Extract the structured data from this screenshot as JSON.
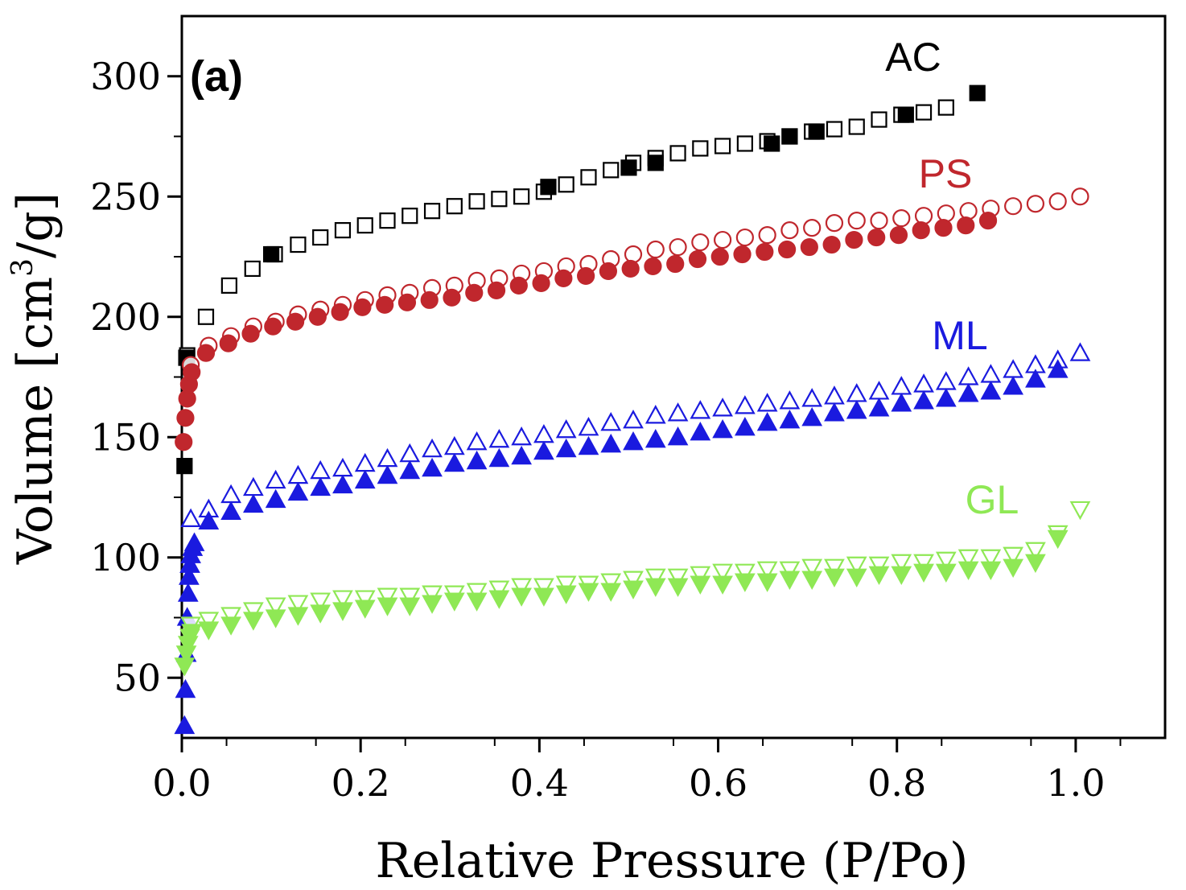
{
  "chart_data": {
    "type": "scatter",
    "panel_label": "(a)",
    "xlabel": "Relative Pressure (P/Po)",
    "ylabel_main": "Volume [cm",
    "ylabel_sup": "3",
    "ylabel_end": "/g]",
    "xlim": [
      0,
      1.1
    ],
    "ylim": [
      25,
      325
    ],
    "x_ticks": [
      0.0,
      0.2,
      0.4,
      0.6,
      0.8,
      1.0
    ],
    "x_tick_labels": [
      "0.0",
      "0.2",
      "0.4",
      "0.6",
      "0.8",
      "1.0"
    ],
    "y_ticks": [
      50,
      100,
      150,
      200,
      250,
      300
    ],
    "y_tick_labels": [
      "50",
      "100",
      "150",
      "200",
      "250",
      "300"
    ],
    "grid": false,
    "series": [
      {
        "name": "AC",
        "color": "#000000",
        "marker": "square",
        "adsorption": {
          "x": [
            0.003,
            0.005,
            0.1,
            0.41,
            0.5,
            0.53,
            0.66,
            0.68,
            0.71,
            0.81,
            0.89
          ],
          "y": [
            138,
            183,
            226,
            254,
            262,
            264,
            272,
            275,
            277,
            284,
            293
          ]
        },
        "desorption": {
          "x": [
            0.006,
            0.027,
            0.053,
            0.079,
            0.104,
            0.13,
            0.155,
            0.18,
            0.205,
            0.23,
            0.255,
            0.28,
            0.305,
            0.33,
            0.355,
            0.38,
            0.405,
            0.43,
            0.455,
            0.48,
            0.505,
            0.53,
            0.555,
            0.58,
            0.605,
            0.63,
            0.655,
            0.68,
            0.705,
            0.73,
            0.755,
            0.78,
            0.805,
            0.83,
            0.855
          ],
          "y": [
            184,
            200,
            213,
            220,
            226,
            230,
            233,
            236,
            238,
            240,
            242,
            244,
            246,
            248,
            249,
            250,
            252,
            255,
            258,
            261,
            264,
            266,
            268,
            270,
            271,
            272,
            273,
            275,
            277,
            278,
            279,
            282,
            284,
            285,
            287
          ]
        }
      },
      {
        "name": "PS",
        "color": "#c0272d",
        "marker": "circle",
        "adsorption": {
          "x": [
            0.002,
            0.004,
            0.006,
            0.008,
            0.011,
            0.027,
            0.052,
            0.077,
            0.102,
            0.127,
            0.152,
            0.177,
            0.202,
            0.227,
            0.252,
            0.277,
            0.302,
            0.327,
            0.352,
            0.377,
            0.402,
            0.427,
            0.452,
            0.477,
            0.502,
            0.527,
            0.552,
            0.577,
            0.602,
            0.627,
            0.652,
            0.677,
            0.702,
            0.727,
            0.752,
            0.777,
            0.802,
            0.827,
            0.852,
            0.877,
            0.902
          ],
          "y": [
            148,
            158,
            166,
            172,
            177,
            185,
            189,
            193,
            196,
            198,
            200,
            202,
            204,
            205,
            206,
            207,
            208,
            210,
            211,
            213,
            214,
            216,
            217,
            219,
            220,
            221,
            222,
            224,
            225,
            226,
            227,
            228,
            229,
            230,
            232,
            233,
            234,
            236,
            237,
            238,
            240
          ]
        },
        "desorption": {
          "x": [
            0.01,
            0.03,
            0.055,
            0.08,
            0.105,
            0.13,
            0.155,
            0.18,
            0.205,
            0.23,
            0.255,
            0.28,
            0.305,
            0.33,
            0.355,
            0.38,
            0.405,
            0.43,
            0.455,
            0.48,
            0.505,
            0.53,
            0.555,
            0.58,
            0.605,
            0.63,
            0.655,
            0.68,
            0.705,
            0.73,
            0.755,
            0.78,
            0.805,
            0.83,
            0.855,
            0.88,
            0.905,
            0.93,
            0.955,
            0.98,
            1.005
          ],
          "y": [
            180,
            188,
            192,
            196,
            198,
            201,
            203,
            205,
            207,
            209,
            210,
            212,
            213,
            215,
            216,
            218,
            219,
            221,
            222,
            224,
            226,
            228,
            229,
            231,
            232,
            233,
            234,
            236,
            237,
            239,
            240,
            240,
            241,
            242,
            243,
            244,
            245,
            246,
            247,
            248,
            250
          ]
        }
      },
      {
        "name": "ML",
        "color": "#1a1adf",
        "marker": "triangle-up",
        "adsorption": {
          "x": [
            0.003,
            0.004,
            0.005,
            0.006,
            0.007,
            0.008,
            0.009,
            0.01,
            0.012,
            0.014,
            0.03,
            0.055,
            0.08,
            0.105,
            0.13,
            0.155,
            0.18,
            0.205,
            0.23,
            0.255,
            0.28,
            0.305,
            0.33,
            0.355,
            0.38,
            0.405,
            0.43,
            0.455,
            0.48,
            0.505,
            0.53,
            0.555,
            0.58,
            0.605,
            0.63,
            0.655,
            0.68,
            0.705,
            0.73,
            0.755,
            0.78,
            0.805,
            0.83,
            0.855,
            0.88,
            0.905,
            0.93,
            0.955,
            0.98
          ],
          "y": [
            30,
            45,
            60,
            75,
            85,
            92,
            97,
            101,
            104,
            106,
            115,
            119,
            122,
            124,
            127,
            129,
            130,
            132,
            134,
            136,
            137,
            139,
            140,
            141,
            142,
            144,
            145,
            146,
            147,
            148,
            149,
            150,
            152,
            153,
            154,
            156,
            157,
            158,
            160,
            161,
            162,
            164,
            165,
            166,
            168,
            169,
            171,
            174,
            178
          ]
        },
        "desorption": {
          "x": [
            0.01,
            0.03,
            0.055,
            0.08,
            0.105,
            0.13,
            0.155,
            0.18,
            0.205,
            0.23,
            0.255,
            0.28,
            0.305,
            0.33,
            0.355,
            0.38,
            0.405,
            0.43,
            0.455,
            0.48,
            0.505,
            0.53,
            0.555,
            0.58,
            0.605,
            0.63,
            0.655,
            0.68,
            0.705,
            0.73,
            0.755,
            0.78,
            0.805,
            0.83,
            0.855,
            0.88,
            0.905,
            0.93,
            0.955,
            0.98,
            1.005
          ],
          "y": [
            116,
            120,
            126,
            129,
            132,
            134,
            136,
            137,
            139,
            141,
            143,
            145,
            146,
            148,
            149,
            150,
            151,
            153,
            154,
            156,
            157,
            159,
            160,
            161,
            162,
            163,
            164,
            165,
            166,
            167,
            168,
            169,
            171,
            172,
            173,
            175,
            176,
            178,
            180,
            182,
            185
          ]
        }
      },
      {
        "name": "GL",
        "color": "#8fe855",
        "marker": "triangle-down",
        "adsorption": {
          "x": [
            0.003,
            0.005,
            0.007,
            0.009,
            0.011,
            0.03,
            0.055,
            0.08,
            0.105,
            0.13,
            0.155,
            0.18,
            0.205,
            0.23,
            0.255,
            0.28,
            0.305,
            0.33,
            0.355,
            0.38,
            0.405,
            0.43,
            0.455,
            0.48,
            0.505,
            0.53,
            0.555,
            0.58,
            0.605,
            0.63,
            0.655,
            0.68,
            0.705,
            0.73,
            0.755,
            0.78,
            0.805,
            0.83,
            0.855,
            0.88,
            0.905,
            0.93,
            0.955,
            0.98
          ],
          "y": [
            55,
            60,
            64,
            67,
            69,
            70,
            72,
            74,
            75,
            76,
            77,
            78,
            79,
            80,
            80,
            81,
            82,
            82,
            83,
            84,
            84,
            85,
            86,
            86,
            87,
            88,
            88,
            89,
            89,
            90,
            90,
            91,
            91,
            92,
            92,
            93,
            93,
            94,
            94,
            95,
            95,
            96,
            98,
            108
          ]
        },
        "desorption": {
          "x": [
            0.01,
            0.03,
            0.055,
            0.08,
            0.105,
            0.13,
            0.155,
            0.18,
            0.205,
            0.23,
            0.255,
            0.28,
            0.305,
            0.33,
            0.355,
            0.38,
            0.405,
            0.43,
            0.455,
            0.48,
            0.505,
            0.53,
            0.555,
            0.58,
            0.605,
            0.63,
            0.655,
            0.68,
            0.705,
            0.73,
            0.755,
            0.78,
            0.805,
            0.83,
            0.855,
            0.88,
            0.905,
            0.93,
            0.955,
            0.98,
            1.005
          ],
          "y": [
            72,
            74,
            76,
            78,
            80,
            81,
            82,
            83,
            83,
            84,
            84,
            85,
            85,
            86,
            87,
            88,
            88,
            89,
            89,
            90,
            91,
            92,
            92,
            93,
            94,
            94,
            95,
            95,
            96,
            96,
            97,
            97,
            98,
            98,
            99,
            100,
            100,
            101,
            103,
            110,
            120
          ]
        }
      }
    ]
  }
}
